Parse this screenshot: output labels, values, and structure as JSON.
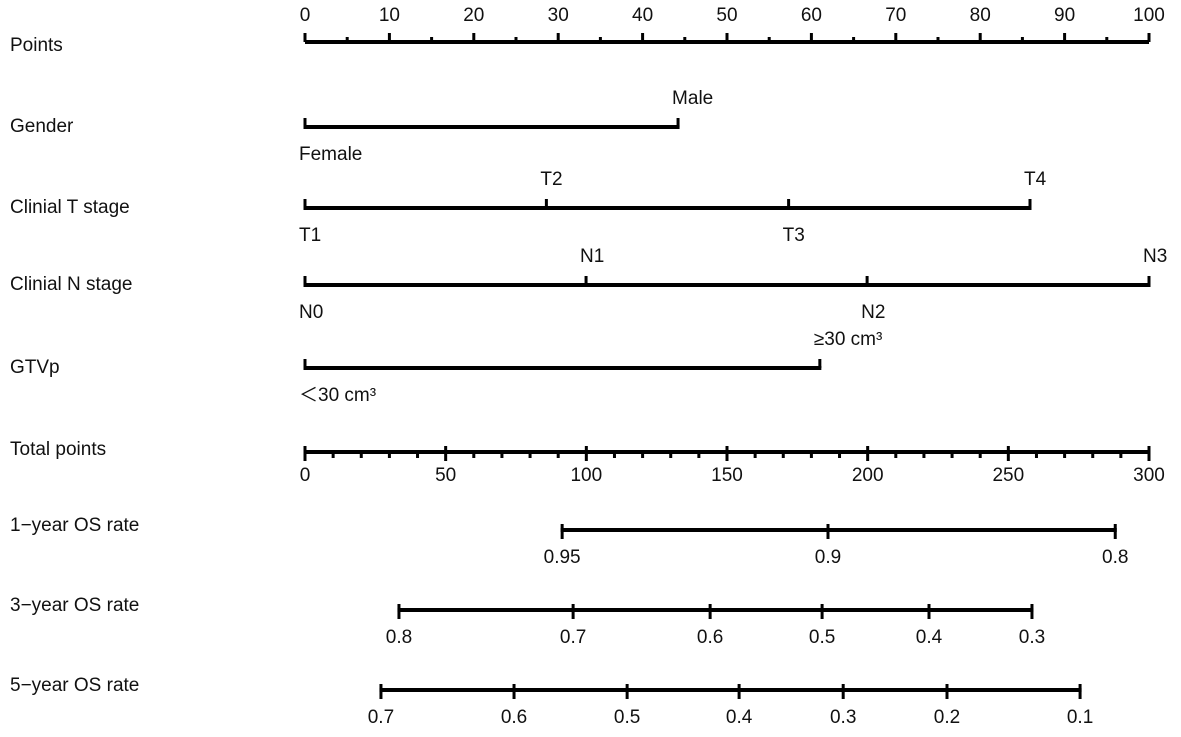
{
  "chart_data": {
    "type": "nomogram",
    "points_axis": {
      "label": "Points",
      "lim": [
        0,
        100
      ],
      "ticks": [
        0,
        10,
        20,
        30,
        40,
        50,
        60,
        70,
        80,
        90,
        100
      ],
      "minor_ticks": [
        5,
        15,
        25,
        35,
        45,
        55,
        65,
        75,
        85,
        95
      ]
    },
    "variables": [
      {
        "label": "Gender",
        "levels": [
          {
            "label": "Female",
            "points": 0
          },
          {
            "label": "Male",
            "points": 44.2
          }
        ]
      },
      {
        "label": "Clinial T stage",
        "levels": [
          {
            "label": "T1",
            "points": 0
          },
          {
            "label": "T2",
            "points": 28.6
          },
          {
            "label": "T3",
            "points": 57.3
          },
          {
            "label": "T4",
            "points": 85.9
          }
        ]
      },
      {
        "label": "Clinial N stage",
        "levels": [
          {
            "label": "N0",
            "points": 0
          },
          {
            "label": "N1",
            "points": 33.3
          },
          {
            "label": "N2",
            "points": 66.6
          },
          {
            "label": "N3",
            "points": 100
          }
        ]
      },
      {
        "label": "GTVp",
        "levels": [
          {
            "label": "＜30 cm³",
            "points": 0
          },
          {
            "label": "≥30 cm³",
            "points": 61.0
          }
        ]
      }
    ],
    "total_axis": {
      "label": "Total points",
      "lim": [
        0,
        300
      ],
      "ticks": [
        0,
        50,
        100,
        150,
        200,
        250,
        300
      ],
      "minor_ticks": [
        10,
        20,
        30,
        40,
        60,
        70,
        80,
        90,
        110,
        120,
        130,
        140,
        160,
        170,
        180,
        190,
        210,
        220,
        230,
        240,
        260,
        270,
        280,
        290
      ]
    },
    "outcomes": [
      {
        "label": "1−year OS rate",
        "ticks": [
          {
            "value": 0.95,
            "points": 91.4
          },
          {
            "value": 0.9,
            "points": 185.9
          },
          {
            "value": 0.8,
            "points": 288.0
          }
        ]
      },
      {
        "label": "3−year OS rate",
        "ticks": [
          {
            "value": 0.8,
            "points": 33.4
          },
          {
            "value": 0.7,
            "points": 95.3
          },
          {
            "value": 0.6,
            "points": 144.0
          },
          {
            "value": 0.5,
            "points": 183.8
          },
          {
            "value": 0.4,
            "points": 221.8
          },
          {
            "value": 0.3,
            "points": 258.4
          }
        ]
      },
      {
        "label": "5−year OS rate",
        "ticks": [
          {
            "value": 0.7,
            "points": 27.0
          },
          {
            "value": 0.6,
            "points": 74.3
          },
          {
            "value": 0.5,
            "points": 114.5
          },
          {
            "value": 0.4,
            "points": 154.3
          },
          {
            "value": 0.3,
            "points": 191.3
          },
          {
            "value": 0.2,
            "points": 228.2
          },
          {
            "value": 0.1,
            "points": 275.5
          }
        ]
      }
    ]
  }
}
